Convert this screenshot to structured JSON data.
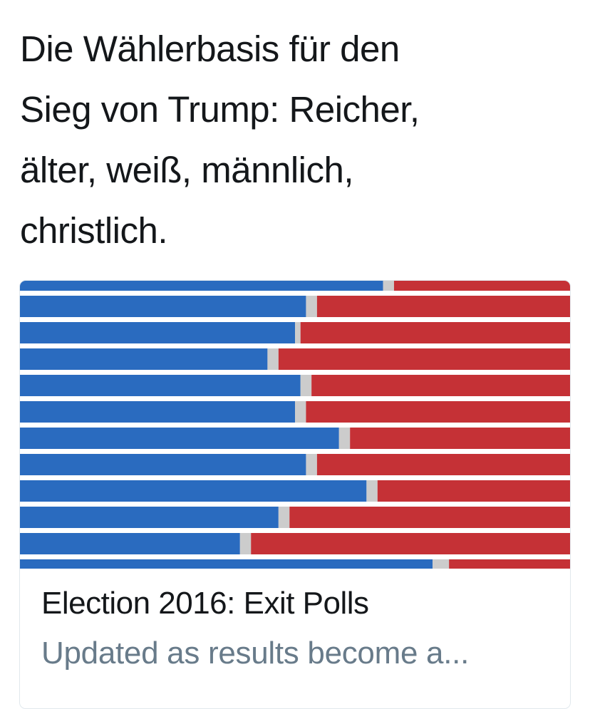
{
  "tweet": {
    "text_lines": [
      "Die Wählerbasis für den",
      "Sieg von Trump: Reicher,",
      "älter, weiß, männlich,",
      "christlich."
    ]
  },
  "card": {
    "title": "Election 2016: Exit Polls",
    "description": "Updated as results become a...",
    "chart_data": {
      "type": "bar",
      "stacked": true,
      "orientation": "horizontal",
      "xlim": [
        0,
        100
      ],
      "series": [
        {
          "color": "#2a6bbf",
          "values": [
            66,
            52,
            50,
            45,
            51,
            50,
            58,
            52,
            63,
            47,
            40,
            75
          ]
        },
        {
          "color": "#cccccc",
          "values": [
            2,
            2,
            1,
            2,
            2,
            2,
            2,
            2,
            2,
            2,
            2,
            3
          ]
        },
        {
          "color": "#c53136",
          "values": [
            32,
            46,
            49,
            53,
            47,
            48,
            40,
            46,
            35,
            51,
            58,
            22
          ]
        }
      ]
    }
  }
}
